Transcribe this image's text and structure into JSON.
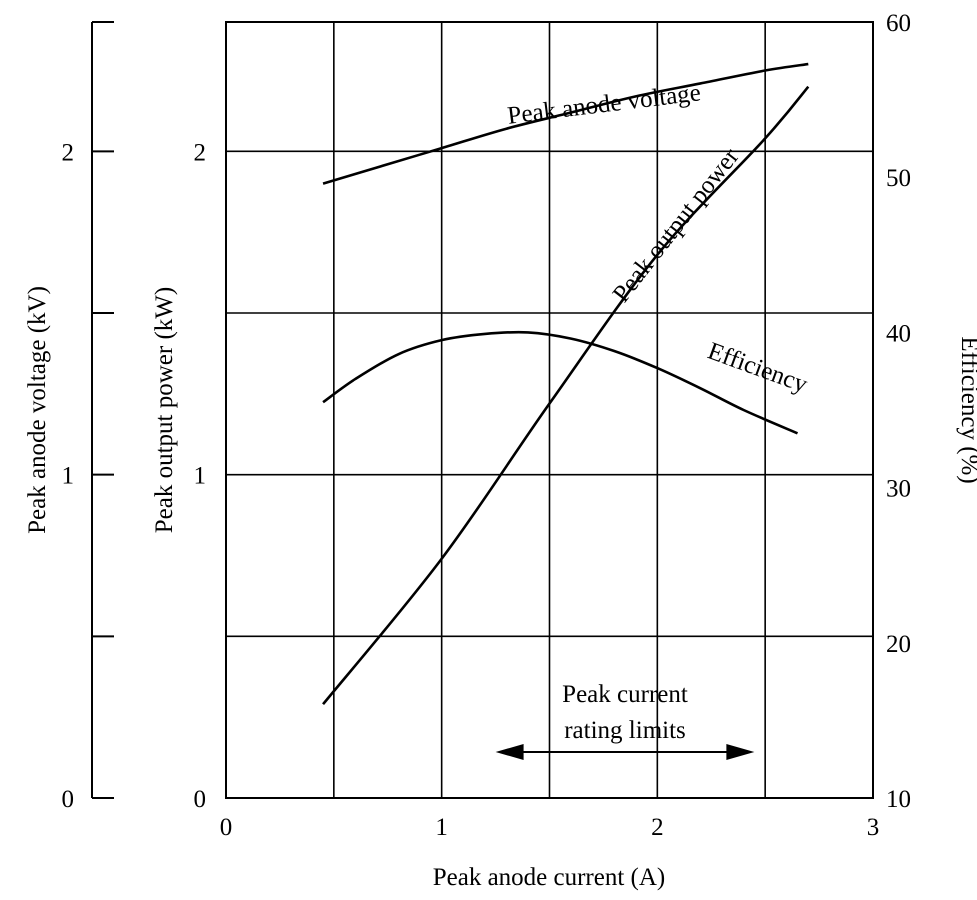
{
  "chart_data": {
    "type": "line",
    "title": "",
    "xlabel": "Peak anode current (A)",
    "xlim": [
      0,
      3
    ],
    "x_ticks": [
      "0",
      "1",
      "2",
      "3"
    ],
    "axes": {
      "voltage": {
        "label": "Peak anode voltage (kV)",
        "ylim": [
          0,
          2.4
        ],
        "ticks": [
          "0",
          "1",
          "2"
        ],
        "side": "far-left"
      },
      "power": {
        "label": "Peak output power (kW)",
        "ylim": [
          0,
          2.4
        ],
        "ticks": [
          "0",
          "1",
          "2"
        ],
        "side": "left"
      },
      "efficiency": {
        "label": "Efficiency (%)",
        "ylim": [
          10,
          60
        ],
        "ticks": [
          "10",
          "20",
          "30",
          "40",
          "50",
          "60"
        ],
        "side": "right"
      }
    },
    "grid": true,
    "series": [
      {
        "name": "Peak anode voltage",
        "axis": "voltage",
        "x": [
          0.45,
          0.7,
          1.0,
          1.3,
          1.6,
          1.9,
          2.2,
          2.5,
          2.7
        ],
        "y": [
          1.9,
          1.95,
          2.01,
          2.07,
          2.12,
          2.17,
          2.21,
          2.25,
          2.27
        ]
      },
      {
        "name": "Peak output power",
        "axis": "power",
        "x": [
          0.45,
          1.0,
          1.5,
          2.0,
          2.5,
          2.7
        ],
        "y": [
          0.29,
          0.74,
          1.22,
          1.68,
          2.04,
          2.2
        ]
      },
      {
        "name": "Efficiency",
        "axis": "efficiency",
        "x": [
          0.45,
          0.6,
          0.8,
          1.0,
          1.2,
          1.4,
          1.6,
          1.8,
          2.0,
          2.2,
          2.4,
          2.65
        ],
        "y": [
          35.5,
          37.0,
          38.6,
          39.5,
          39.9,
          40.0,
          39.6,
          38.8,
          37.7,
          36.4,
          35.0,
          33.5
        ]
      }
    ],
    "annotation": {
      "text_line1": "Peak current",
      "text_line2": "rating limits",
      "x_range": [
        1.25,
        2.45
      ]
    }
  }
}
